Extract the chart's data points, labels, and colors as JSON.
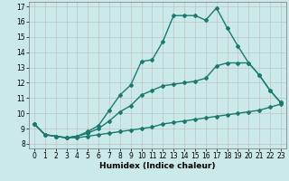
{
  "xlabel": "Humidex (Indice chaleur)",
  "background_color": "#cce9e9",
  "grid_color": "#bbbbbb",
  "line_color": "#1a7a6e",
  "xlim": [
    -0.5,
    23.5
  ],
  "ylim": [
    7.7,
    17.3
  ],
  "xticks": [
    0,
    1,
    2,
    3,
    4,
    5,
    6,
    7,
    8,
    9,
    10,
    11,
    12,
    13,
    14,
    15,
    16,
    17,
    18,
    19,
    20,
    21,
    22,
    23
  ],
  "yticks": [
    8,
    9,
    10,
    11,
    12,
    13,
    14,
    15,
    16,
    17
  ],
  "line1_x": [
    0,
    1,
    2,
    3,
    4,
    5,
    6,
    7,
    8,
    9,
    10,
    11,
    12,
    13,
    14,
    15,
    16,
    17,
    18,
    19,
    20,
    21,
    22,
    23
  ],
  "line1_y": [
    9.3,
    8.6,
    8.5,
    8.4,
    8.4,
    8.5,
    8.6,
    8.7,
    8.8,
    8.9,
    9.0,
    9.1,
    9.3,
    9.4,
    9.5,
    9.6,
    9.7,
    9.8,
    9.9,
    10.0,
    10.1,
    10.2,
    10.4,
    10.6
  ],
  "line2_x": [
    0,
    1,
    2,
    3,
    4,
    5,
    6,
    7,
    8,
    9,
    10,
    11,
    12,
    13,
    14,
    15,
    16,
    17,
    18,
    19,
    20,
    21,
    22,
    23
  ],
  "line2_y": [
    9.3,
    8.6,
    8.5,
    8.4,
    8.5,
    8.7,
    9.0,
    9.5,
    10.1,
    10.5,
    11.2,
    11.5,
    11.8,
    11.9,
    12.0,
    12.1,
    12.3,
    13.1,
    13.3,
    13.3,
    13.3,
    12.5,
    11.5,
    10.7
  ],
  "line3_x": [
    0,
    1,
    2,
    3,
    4,
    5,
    6,
    7,
    8,
    9,
    10,
    11,
    12,
    13,
    14,
    15,
    16,
    17,
    18,
    19,
    20,
    21,
    22,
    23
  ],
  "line3_y": [
    9.3,
    8.6,
    8.5,
    8.4,
    8.5,
    8.8,
    9.2,
    10.2,
    11.2,
    11.85,
    13.4,
    13.5,
    14.7,
    16.4,
    16.4,
    16.4,
    16.1,
    16.9,
    15.6,
    14.4,
    13.3,
    12.5,
    11.5,
    10.7
  ],
  "marker": "D",
  "markersize": 2,
  "linewidth": 1.0
}
